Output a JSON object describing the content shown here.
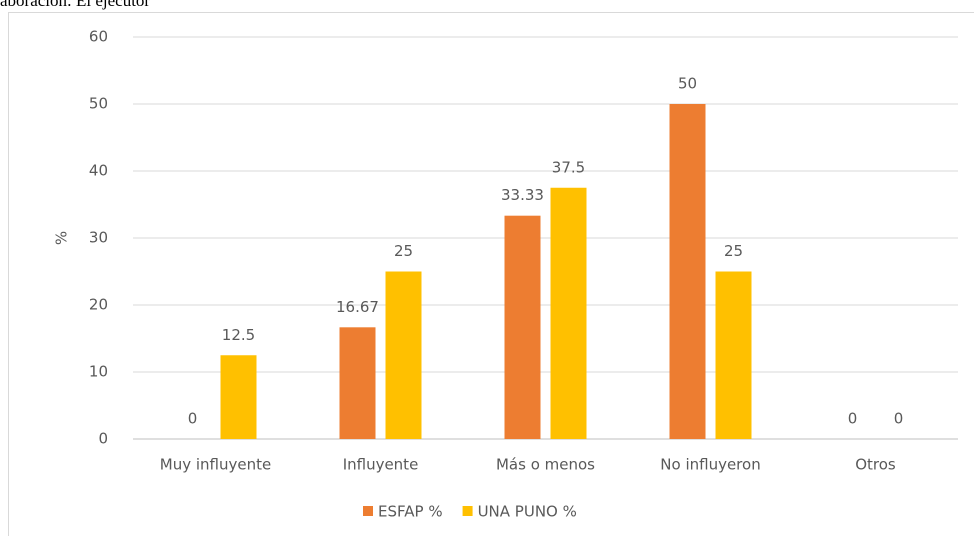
{
  "caption": "aboración: El ejecutor",
  "chart_data": {
    "type": "bar",
    "categories": [
      "Muy influyente",
      "Influyente",
      "Más o menos",
      "No influyeron",
      "Otros"
    ],
    "series": [
      {
        "name": "ESFAP %",
        "color": "#ed7d31",
        "values": [
          0,
          16.67,
          33.33,
          50,
          0
        ]
      },
      {
        "name": "UNA PUNO %",
        "color": "#ffc000",
        "values": [
          12.5,
          25,
          37.5,
          25,
          0
        ]
      }
    ],
    "y_label": "%",
    "ylim": [
      0,
      60
    ],
    "yticks": [
      0,
      10,
      20,
      30,
      40,
      50,
      60
    ],
    "grid": true,
    "legend": "bottom"
  }
}
